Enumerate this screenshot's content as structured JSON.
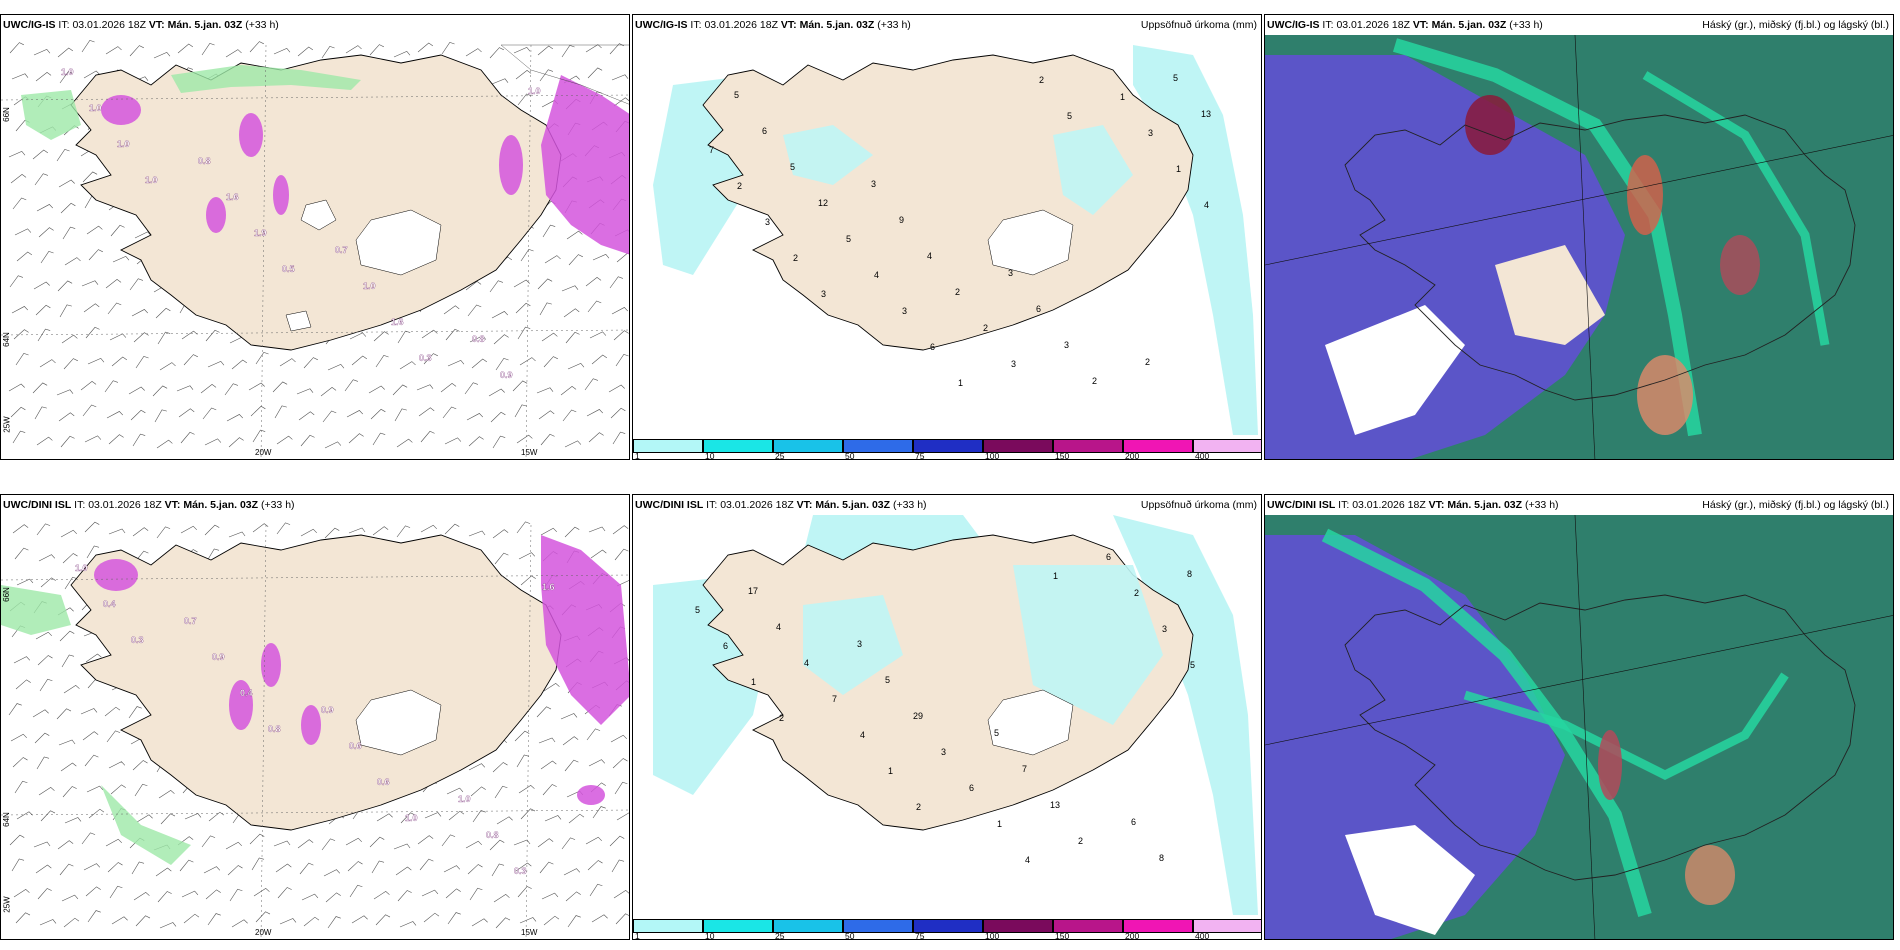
{
  "panels": [
    {
      "id": "p1",
      "model": "UWC/IG-IS",
      "it_label": "IT:",
      "it_value": "03.01.2026 18Z",
      "vt_label": "VT:",
      "vt_value": "Mán. 5.jan. 03Z",
      "lead": "(+33 h)",
      "right_title": "",
      "lon_labels": [
        "20W",
        "15W"
      ],
      "lat_labels": [
        "66N",
        "64N",
        "25W"
      ],
      "value_labels": [
        "1.0",
        "0.8",
        "0.7",
        "0.8",
        "1.0",
        "1.6",
        "1.0",
        "0.9",
        "1.0",
        "1.9",
        "1.6",
        "1.0",
        "1.0",
        "0.5",
        "0.3"
      ]
    },
    {
      "id": "p2",
      "model": "UWC/IG-IS",
      "it_label": "IT:",
      "it_value": "03.01.2026 18Z",
      "vt_label": "VT:",
      "vt_value": "Mán. 5.jan. 03Z",
      "lead": "(+33 h)",
      "right_title": "Uppsöfnuð úrkoma (mm)",
      "value_labels": [
        "5",
        "3",
        "3",
        "2",
        "6",
        "9",
        "6",
        "5",
        "5",
        "4",
        "3",
        "13",
        "12",
        "2",
        "2",
        "7",
        "5",
        "2",
        "1",
        "2",
        "4",
        "3",
        "3",
        "3",
        "3",
        "2",
        "1",
        "2",
        "6",
        "5",
        "4",
        "3",
        "1"
      ]
    },
    {
      "id": "p3",
      "model": "UWC/IG-IS",
      "it_label": "IT:",
      "it_value": "03.01.2026 18Z",
      "vt_label": "VT:",
      "vt_value": "Mán. 5.jan. 03Z",
      "lead": "(+33 h)",
      "right_title": "Háský (gr.), miðský (fj.bl.) og lágský (bl.)"
    },
    {
      "id": "p4",
      "model": "UWC/DINI ISL",
      "it_label": "IT:",
      "it_value": "03.01.2026 18Z",
      "vt_label": "VT:",
      "vt_value": "Mán. 5.jan. 03Z",
      "lead": "(+33 h)",
      "right_title": "",
      "lon_labels": [
        "20W",
        "15W"
      ],
      "lat_labels": [
        "66N",
        "64N",
        "25W"
      ],
      "value_labels": [
        "0.7",
        "0.9",
        "1.0",
        "1.0",
        "0.9",
        "0.6",
        "0.8",
        "0.4",
        "0.4",
        "0.6",
        "0.3",
        "0.3",
        "0.8",
        "1.0",
        "1.6"
      ]
    },
    {
      "id": "p5",
      "model": "UWC/DINI ISL",
      "it_label": "IT:",
      "it_value": "03.01.2026 18Z",
      "vt_label": "VT:",
      "vt_value": "Mán. 5.jan. 03Z",
      "lead": "(+33 h)",
      "right_title": "Uppsöfnuð úrkoma (mm)",
      "value_labels": [
        "3",
        "5",
        "6",
        "17",
        "5",
        "7",
        "8",
        "4",
        "29",
        "13",
        "8",
        "4",
        "3",
        "2",
        "5",
        "7",
        "6",
        "6",
        "6",
        "4",
        "1",
        "2",
        "1",
        "1",
        "4",
        "3",
        "2",
        "2",
        "1",
        "5"
      ]
    },
    {
      "id": "p6",
      "model": "UWC/DINI ISL",
      "it_label": "IT:",
      "it_value": "03.01.2026 18Z",
      "vt_label": "VT:",
      "vt_value": "Mán. 5.jan. 03Z",
      "lead": "(+33 h)",
      "right_title": "Háský (gr.), miðský (fj.bl.) og lágský (bl.)"
    }
  ],
  "precip_legend": {
    "labels": [
      "1",
      "10",
      "25",
      "50",
      "75",
      "100",
      "150",
      "200",
      "400"
    ],
    "colors": [
      "#b3f7f7",
      "#1ae6e6",
      "#19c2e8",
      "#2e6be8",
      "#1f2ec4",
      "#7a0a5c",
      "#b8158a",
      "#f015b4",
      "#f2b3f2"
    ]
  },
  "colors": {
    "land": "#f3e6d5",
    "green_rain": "#9ee8a8",
    "purple_snow": "#d455dd",
    "cyan_precip": "#bff5f5",
    "low_cloud": "#5b55c8",
    "mid_cloud": "#2f7f6c",
    "high_cloud": "#26d6a0"
  }
}
